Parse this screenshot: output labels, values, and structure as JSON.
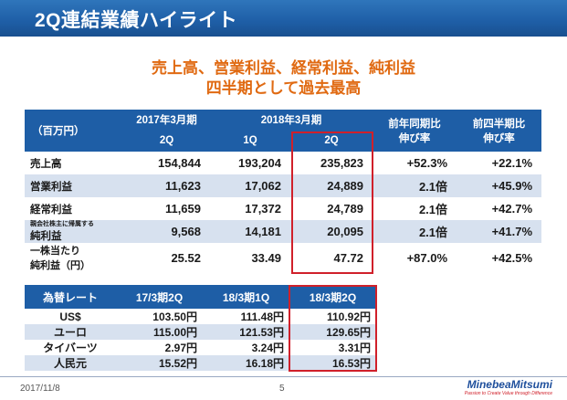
{
  "title": "2Q連結業績ハイライト",
  "subtitle": [
    "売上高、営業利益、経常利益、純利益",
    "四半期として過去最高"
  ],
  "main_table": {
    "unit_label": "（百万円）",
    "fy2017_label": "2017年3月期",
    "fy2018_label": "2018年3月期",
    "yoy_label": [
      "前年同期比",
      "伸び率"
    ],
    "qoq_label": [
      "前四半期比",
      "伸び率"
    ],
    "col_2017_2q": "2Q",
    "col_2018_1q": "1Q",
    "col_2018_2q": "2Q",
    "rows": [
      {
        "label": "売上高",
        "label_small": "",
        "v1": "154,844",
        "v2": "193,204",
        "v3": "235,823",
        "yoy": "+52.3%",
        "qoq": "+22.1%"
      },
      {
        "label": "営業利益",
        "label_small": "",
        "v1": "11,623",
        "v2": "17,062",
        "v3": "24,889",
        "yoy": "2.1倍",
        "qoq": "+45.9%"
      },
      {
        "label": "経常利益",
        "label_small": "",
        "v1": "11,659",
        "v2": "17,372",
        "v3": "24,789",
        "yoy": "2.1倍",
        "qoq": "+42.7%"
      },
      {
        "label": "純利益",
        "label_small": "親会社株主に帰属する",
        "v1": "9,568",
        "v2": "14,181",
        "v3": "20,095",
        "yoy": "2.1倍",
        "qoq": "+41.7%"
      },
      {
        "label": "純利益（円）",
        "label_small": "一株当たり",
        "v1": "25.52",
        "v2": "33.49",
        "v3": "47.72",
        "yoy": "+87.0%",
        "qoq": "+42.5%"
      }
    ]
  },
  "fx_table": {
    "header": [
      "為替レート",
      "17/3期2Q",
      "18/3期1Q",
      "18/3期2Q"
    ],
    "rows": [
      {
        "currency": "US$",
        "a": "103.50円",
        "b": "111.48円",
        "c": "110.92円"
      },
      {
        "currency": "ユーロ",
        "a": "115.00円",
        "b": "121.53円",
        "c": "129.65円"
      },
      {
        "currency": "タイバーツ",
        "a": "2.97円",
        "b": "3.24円",
        "c": "3.31円"
      },
      {
        "currency": "人民元",
        "a": "15.52円",
        "b": "16.18円",
        "c": "16.53円"
      }
    ]
  },
  "footer": {
    "date": "2017/11/8",
    "page": "5",
    "logo": "MinebeaMitsumi",
    "logo_tagline": "Passion to Create Value through Difference"
  },
  "colors": {
    "header_blue": "#1e5ea6",
    "row_tint": "#d7e1ef",
    "accent_orange": "#e06a12",
    "highlight_red": "#d0202a"
  }
}
